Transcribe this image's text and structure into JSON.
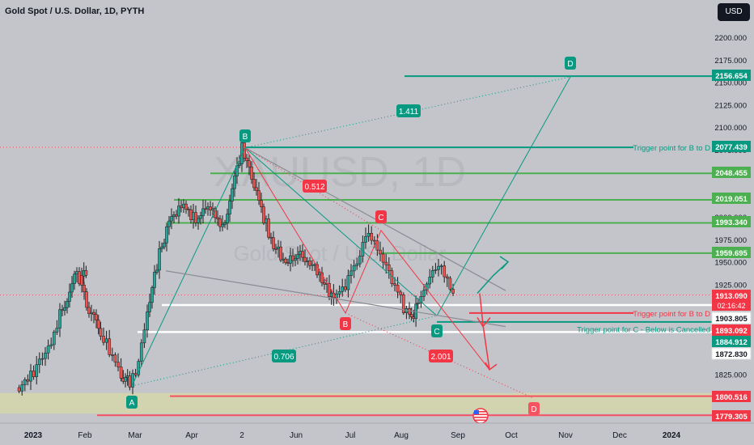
{
  "header": {
    "title": "Gold Spot / U.S. Dollar, 1D, PYTH",
    "currency": "USD"
  },
  "watermark": {
    "symbol": "XAUUSD, 1D",
    "subtitle": "Gold Spot / U.S. Dollar"
  },
  "colors": {
    "background": "#c3c5cb",
    "bull_candle": "#26a69a",
    "bear_candle": "#ef5350",
    "green_level": "#4caf50",
    "teal": "#089981",
    "red": "#f23645",
    "white_level": "#ffffff",
    "orange_level": "#f7525f",
    "zone": "#d6d8a6"
  },
  "chart_data": {
    "type": "candlestick",
    "title": "Gold Spot / U.S. Dollar, 1D, PYTH",
    "ylim": [
      1760,
      2210
    ],
    "y_ticks": [
      1825,
      1850,
      1875,
      1900,
      1925,
      1950,
      1975,
      2000,
      2025,
      2050,
      2075,
      2100,
      2125,
      2150,
      2175,
      2200
    ],
    "y_tick_labels": [
      "1825.000",
      "1850.000",
      "1875.000",
      "1900.000",
      "1925.000",
      "1950.000",
      "1975.000",
      "2000.000",
      "2025.000",
      "2050.000",
      "2075.000",
      "2100.000",
      "2125.000",
      "2150.000",
      "2175.000",
      "2200.000"
    ],
    "x_ticks": [
      "2023",
      "Feb",
      "Mar",
      "Apr",
      "2",
      "Jun",
      "Jul",
      "Aug",
      "Sep",
      "Oct",
      "Nov",
      "Dec",
      "2024"
    ],
    "price_path": [
      [
        0,
        1810
      ],
      [
        10,
        1822
      ],
      [
        20,
        1845
      ],
      [
        30,
        1890
      ],
      [
        35,
        1905
      ],
      [
        40,
        1935
      ],
      [
        45,
        1930
      ],
      [
        48,
        1940
      ],
      [
        45,
        1920
      ],
      [
        50,
        1895
      ],
      [
        55,
        1880
      ],
      [
        58,
        1870
      ],
      [
        62,
        1860
      ],
      [
        66,
        1845
      ],
      [
        70,
        1835
      ],
      [
        72,
        1825
      ],
      [
        75,
        1820
      ],
      [
        78,
        1815
      ],
      [
        82,
        1830
      ],
      [
        86,
        1860
      ],
      [
        90,
        1890
      ],
      [
        95,
        1935
      ],
      [
        100,
        1970
      ],
      [
        105,
        1990
      ],
      [
        110,
        2005
      ],
      [
        115,
        2015
      ],
      [
        120,
        2000
      ],
      [
        125,
        1995
      ],
      [
        130,
        2010
      ],
      [
        135,
        2005
      ],
      [
        140,
        1990
      ],
      [
        145,
        2000
      ],
      [
        150,
        2040
      ],
      [
        155,
        2077
      ],
      [
        160,
        2050
      ],
      [
        165,
        2030
      ],
      [
        170,
        2000
      ],
      [
        175,
        1975
      ],
      [
        180,
        1960
      ],
      [
        185,
        1955
      ],
      [
        190,
        1950
      ],
      [
        195,
        1960
      ],
      [
        200,
        1950
      ],
      [
        205,
        1945
      ],
      [
        210,
        1930
      ],
      [
        215,
        1915
      ],
      [
        218,
        1905
      ],
      [
        222,
        1920
      ],
      [
        226,
        1925
      ],
      [
        230,
        1935
      ],
      [
        234,
        1950
      ],
      [
        238,
        1970
      ],
      [
        242,
        1982
      ],
      [
        246,
        1970
      ],
      [
        250,
        1955
      ],
      [
        254,
        1940
      ],
      [
        258,
        1930
      ],
      [
        262,
        1915
      ],
      [
        266,
        1900
      ],
      [
        270,
        1893
      ],
      [
        273,
        1890
      ],
      [
        276,
        1905
      ],
      [
        280,
        1920
      ],
      [
        284,
        1935
      ],
      [
        288,
        1945
      ],
      [
        292,
        1940
      ],
      [
        296,
        1925
      ],
      [
        300,
        1920
      ]
    ],
    "price_levels": [
      {
        "price": 2156.654,
        "label": "2156.654",
        "color": "#089981"
      },
      {
        "price": 2077.439,
        "label": "2077.439",
        "color": "#089981"
      },
      {
        "price": 2048.455,
        "label": "2048.455",
        "color": "#4caf50"
      },
      {
        "price": 2019.051,
        "label": "2019.051",
        "color": "#4caf50"
      },
      {
        "price": 1993.34,
        "label": "1993.340",
        "color": "#4caf50"
      },
      {
        "price": 1959.695,
        "label": "1959.695",
        "color": "#4caf50"
      },
      {
        "price": 1903.805,
        "label": "1903.805",
        "color": "#ffffff"
      },
      {
        "price": 1893.092,
        "label": "1893.092",
        "color": "#f23645"
      },
      {
        "price": 1884.912,
        "label": "1884.912",
        "color": "#089981"
      },
      {
        "price": 1872.83,
        "label": "1872.830",
        "color": "#ffffff"
      },
      {
        "price": 1800.516,
        "label": "1800.516",
        "color": "#f7525f"
      },
      {
        "price": 1779.305,
        "label": "1779.305",
        "color": "#f7525f"
      }
    ],
    "current_price": {
      "price": 1913.09,
      "label": "1913.090",
      "countdown": "02:16:42"
    },
    "annotations": [
      "Trigger point for B to D",
      "Trigger point for B to D",
      "Trigger point for C - Below is Cancelled"
    ],
    "pattern_points": [
      {
        "label": "A",
        "color": "#089981"
      },
      {
        "label": "B",
        "color": "#089981"
      },
      {
        "label": "C",
        "color": "#089981"
      },
      {
        "label": "D",
        "color": "#089981"
      },
      {
        "label": "B",
        "color": "#f23645"
      },
      {
        "label": "C",
        "color": "#f23645"
      },
      {
        "label": "D",
        "color": "#f7525f"
      }
    ],
    "ratios": [
      {
        "label": "1.411",
        "color": "#089981"
      },
      {
        "label": "0.706",
        "color": "#089981"
      },
      {
        "label": "0.512",
        "color": "#f23645"
      },
      {
        "label": "2.001",
        "color": "#f23645"
      }
    ]
  }
}
